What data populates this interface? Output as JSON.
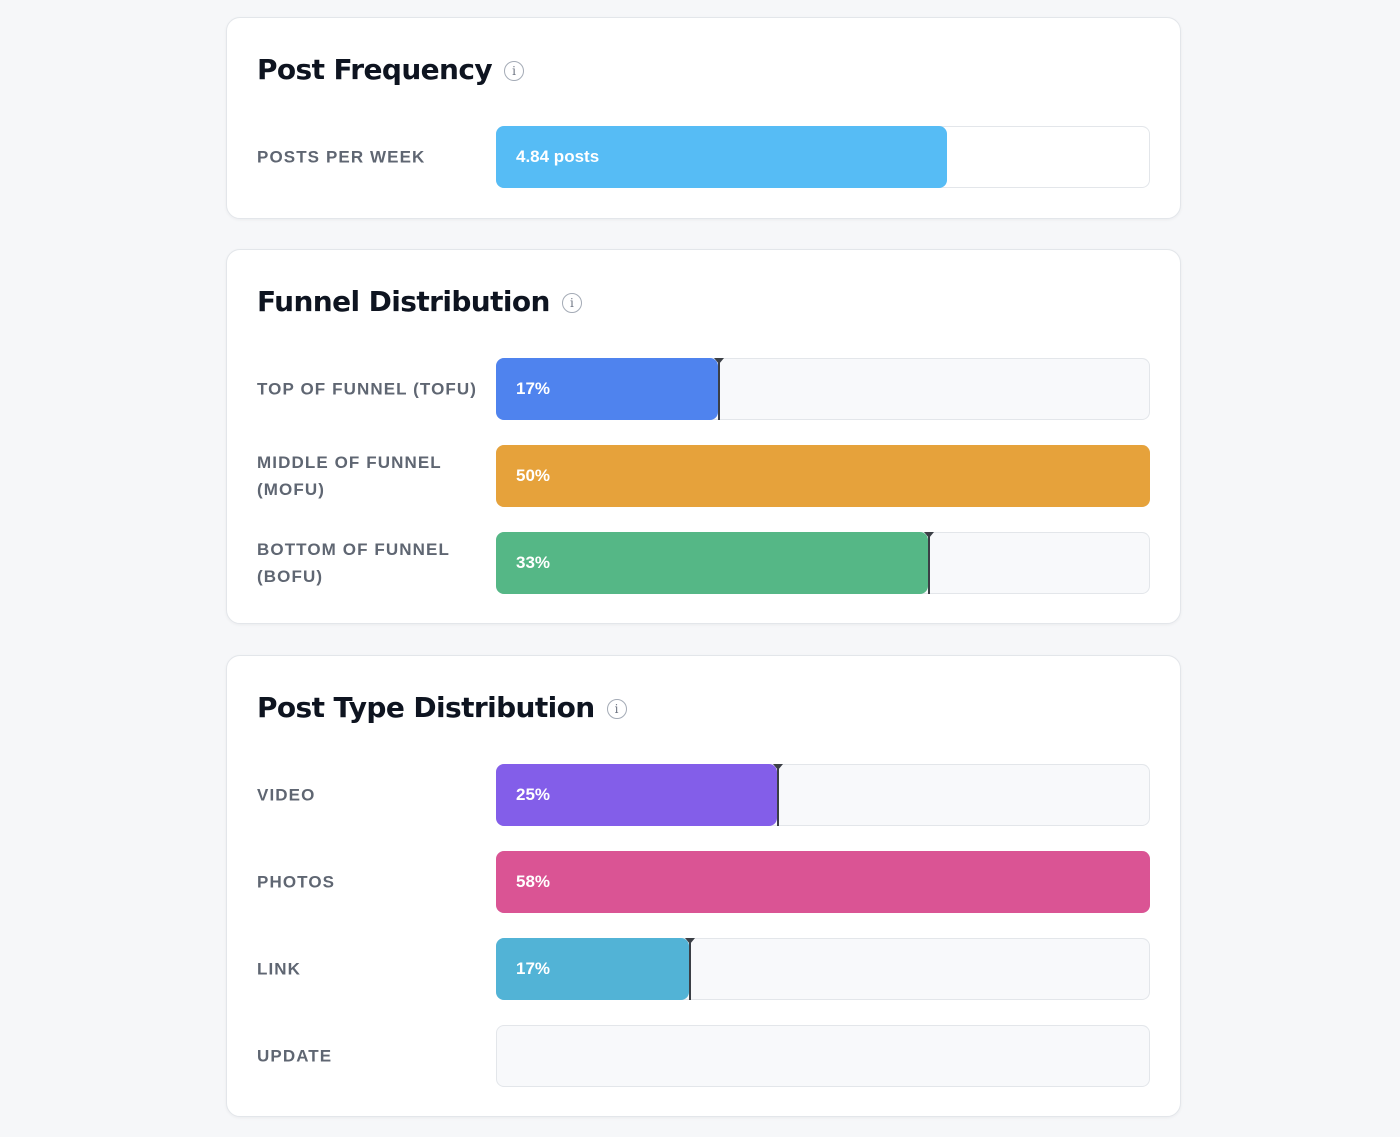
{
  "sections": [
    {
      "title": "Post Frequency",
      "info": "i",
      "rows": [
        {
          "label": "POSTS PER WEEK",
          "value_text": "4.84 posts",
          "fill_fraction": 0.69,
          "color": "#56bcf5",
          "marker": false,
          "track": "white"
        }
      ]
    },
    {
      "title": "Funnel Distribution",
      "info": "i",
      "rows": [
        {
          "label": "TOP OF FUNNEL (TOFU)",
          "value_text": "17%",
          "fill_fraction": 0.34,
          "color": "#4f83ee",
          "marker": true
        },
        {
          "label": "MIDDLE OF FUNNEL (MOFU)",
          "value_text": "50%",
          "fill_fraction": 1.0,
          "color": "#e6a23b",
          "marker": false
        },
        {
          "label": "BOTTOM OF FUNNEL (BOFU)",
          "value_text": "33%",
          "fill_fraction": 0.66,
          "color": "#55b786",
          "marker": true
        }
      ]
    },
    {
      "title": "Post Type Distribution",
      "info": "i",
      "rows": [
        {
          "label": "VIDEO",
          "value_text": "25%",
          "fill_fraction": 0.43,
          "color": "#835ee9",
          "marker": true
        },
        {
          "label": "PHOTOS",
          "value_text": "58%",
          "fill_fraction": 1.0,
          "color": "#da5494",
          "marker": false
        },
        {
          "label": "LINK",
          "value_text": "17%",
          "fill_fraction": 0.295,
          "color": "#52b3d6",
          "marker": true
        },
        {
          "label": "UPDATE",
          "value_text": "",
          "fill_fraction": 0,
          "color": "#cccccc",
          "marker": false
        }
      ]
    }
  ]
}
